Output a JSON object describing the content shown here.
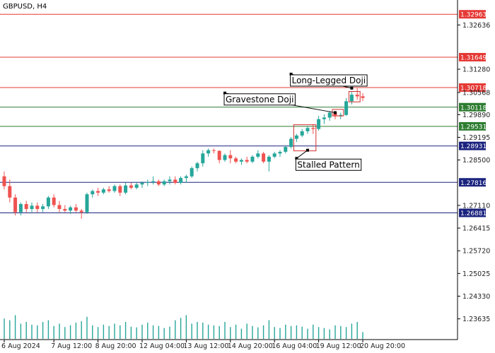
{
  "chart_data": {
    "type": "candlestick",
    "title": "GBPUSD, H4",
    "ylim": [
      1.23,
      1.334
    ],
    "colors": {
      "bull": "#26a69a",
      "bear": "#ef5350",
      "volume": "#26a69a",
      "resistance": "#e53935",
      "support_green": "#2e7d32",
      "support_blue": "#1a237e",
      "pattern_box": "#d32f2f"
    },
    "y_ticks": [
      "1.32636",
      "1.31280",
      "1.30568",
      "1.29890",
      "1.29195",
      "1.28500",
      "1.27110",
      "1.26415",
      "1.25720",
      "1.25025",
      "1.24330",
      "1.23635"
    ],
    "x_ticks": [
      {
        "label": "6 Aug 2024",
        "index": 0
      },
      {
        "label": "7 Aug 12:00",
        "index": 9
      },
      {
        "label": "8 Aug 20:00",
        "index": 17
      },
      {
        "label": "12 Aug 04:00",
        "index": 25
      },
      {
        "label": "13 Aug 12:00",
        "index": 33
      },
      {
        "label": "14 Aug 20:00",
        "index": 41
      },
      {
        "label": "16 Aug 04:00",
        "index": 49
      },
      {
        "label": "19 Aug 12:00",
        "index": 57
      },
      {
        "label": "20 Aug 20:00",
        "index": 65
      }
    ],
    "levels": [
      {
        "price": 1.32963,
        "label": "1.32963",
        "kind": "resistance"
      },
      {
        "price": 1.31649,
        "label": "1.31649",
        "kind": "resistance"
      },
      {
        "price": 1.30718,
        "label": "1.30718",
        "kind": "resistance"
      },
      {
        "price": 1.30118,
        "label": "1.30118",
        "kind": "support_green"
      },
      {
        "price": 1.29531,
        "label": "1.29531",
        "kind": "support_green"
      },
      {
        "price": 1.28931,
        "label": "1.28931",
        "kind": "support_blue"
      },
      {
        "price": 1.27816,
        "label": "1.27816",
        "kind": "support_blue"
      },
      {
        "price": 1.26881,
        "label": "1.26881",
        "kind": "support_blue"
      }
    ],
    "candles": [
      [
        1.28,
        1.2815,
        1.276,
        1.277
      ],
      [
        1.277,
        1.279,
        1.272,
        1.2735
      ],
      [
        1.2735,
        1.2745,
        1.268,
        1.269
      ],
      [
        1.269,
        1.272,
        1.268,
        1.2715
      ],
      [
        1.2715,
        1.2725,
        1.269,
        1.27
      ],
      [
        1.27,
        1.272,
        1.269,
        1.271
      ],
      [
        1.271,
        1.272,
        1.269,
        1.27
      ],
      [
        1.27,
        1.2715,
        1.269,
        1.2708
      ],
      [
        1.2708,
        1.274,
        1.27,
        1.2735
      ],
      [
        1.2735,
        1.2745,
        1.2705,
        1.2712
      ],
      [
        1.2712,
        1.2725,
        1.269,
        1.27
      ],
      [
        1.27,
        1.2712,
        1.269,
        1.2695
      ],
      [
        1.2695,
        1.271,
        1.2685,
        1.2705
      ],
      [
        1.2705,
        1.2715,
        1.269,
        1.2695
      ],
      [
        1.2695,
        1.27,
        1.267,
        1.269
      ],
      [
        1.269,
        1.275,
        1.2685,
        1.2745
      ],
      [
        1.2745,
        1.276,
        1.2735,
        1.2755
      ],
      [
        1.2755,
        1.2765,
        1.274,
        1.275
      ],
      [
        1.275,
        1.2765,
        1.2745,
        1.276
      ],
      [
        1.276,
        1.277,
        1.275,
        1.2755
      ],
      [
        1.2755,
        1.2775,
        1.275,
        1.277
      ],
      [
        1.277,
        1.2775,
        1.274,
        1.275
      ],
      [
        1.275,
        1.278,
        1.2745,
        1.2772
      ],
      [
        1.2772,
        1.278,
        1.276,
        1.2765
      ],
      [
        1.2765,
        1.278,
        1.276,
        1.2775
      ],
      [
        1.2775,
        1.2785,
        1.2765,
        1.278
      ],
      [
        1.278,
        1.279,
        1.277,
        1.2782
      ],
      [
        1.2782,
        1.28,
        1.2775,
        1.2785
      ],
      [
        1.2785,
        1.279,
        1.277,
        1.2775
      ],
      [
        1.2775,
        1.279,
        1.277,
        1.2785
      ],
      [
        1.2785,
        1.28,
        1.2775,
        1.279
      ],
      [
        1.279,
        1.28,
        1.2775,
        1.278
      ],
      [
        1.278,
        1.28,
        1.2775,
        1.2795
      ],
      [
        1.2795,
        1.2805,
        1.278,
        1.28
      ],
      [
        1.28,
        1.283,
        1.2795,
        1.2825
      ],
      [
        1.2825,
        1.2845,
        1.2815,
        1.284
      ],
      [
        1.284,
        1.288,
        1.283,
        1.287
      ],
      [
        1.287,
        1.2885,
        1.286,
        1.288
      ],
      [
        1.288,
        1.2885,
        1.287,
        1.2878
      ],
      [
        1.2878,
        1.288,
        1.284,
        1.285
      ],
      [
        1.285,
        1.287,
        1.2845,
        1.2865
      ],
      [
        1.2865,
        1.288,
        1.284,
        1.2855
      ],
      [
        1.2855,
        1.286,
        1.284,
        1.2845
      ],
      [
        1.2845,
        1.2855,
        1.2835,
        1.285
      ],
      [
        1.285,
        1.286,
        1.284,
        1.2845
      ],
      [
        1.2845,
        1.2865,
        1.284,
        1.286
      ],
      [
        1.286,
        1.288,
        1.2855,
        1.287
      ],
      [
        1.287,
        1.2875,
        1.284,
        1.2845
      ],
      [
        1.2845,
        1.2865,
        1.2815,
        1.286
      ],
      [
        1.286,
        1.2875,
        1.2855,
        1.287
      ],
      [
        1.287,
        1.288,
        1.286,
        1.2875
      ],
      [
        1.2875,
        1.2895,
        1.287,
        1.289
      ],
      [
        1.289,
        1.292,
        1.2885,
        1.2915
      ],
      [
        1.2915,
        1.293,
        1.2905,
        1.2925
      ],
      [
        1.2925,
        1.2945,
        1.292,
        1.2938
      ],
      [
        1.2938,
        1.2955,
        1.293,
        1.2948
      ],
      [
        1.2948,
        1.296,
        1.293,
        1.2945
      ],
      [
        1.2945,
        1.2985,
        1.294,
        1.2975
      ],
      [
        1.2975,
        1.299,
        1.296,
        1.298
      ],
      [
        1.298,
        1.3,
        1.297,
        1.2995
      ],
      [
        1.2995,
        1.3,
        1.2975,
        1.2985
      ],
      [
        1.2985,
        1.2995,
        1.2975,
        1.2988
      ],
      [
        1.2988,
        1.304,
        1.2985,
        1.303
      ],
      [
        1.303,
        1.306,
        1.302,
        1.305
      ],
      [
        1.305,
        1.307,
        1.3035,
        1.3045
      ],
      [
        1.3045,
        1.3055,
        1.303,
        1.304
      ]
    ],
    "volumes": [
      0.6,
      0.55,
      0.7,
      0.45,
      0.5,
      0.42,
      0.4,
      0.5,
      0.55,
      0.38,
      0.45,
      0.35,
      0.4,
      0.48,
      0.52,
      0.65,
      0.4,
      0.35,
      0.42,
      0.38,
      0.45,
      0.4,
      0.5,
      0.36,
      0.34,
      0.42,
      0.48,
      0.4,
      0.38,
      0.32,
      0.36,
      0.55,
      0.62,
      0.7,
      0.45,
      0.5,
      0.48,
      0.42,
      0.4,
      0.38,
      0.5,
      0.35,
      0.42,
      0.3,
      0.45,
      0.38,
      0.34,
      0.4,
      0.55,
      0.35,
      0.32,
      0.42,
      0.38,
      0.4,
      0.36,
      0.3,
      0.42,
      0.35,
      0.32,
      0.28,
      0.4,
      0.38,
      0.35,
      0.45,
      0.5,
      0.2
    ],
    "annotations": [
      {
        "text": "Long-Legged Doji",
        "label_price": 1.3113,
        "label_index": 52,
        "target_index": 63,
        "target_price": 1.307
      },
      {
        "text": "Gravestone Doji",
        "label_price": 1.3055,
        "label_index": 40,
        "target_index": 60,
        "target_price": 1.2995
      },
      {
        "text": "Stalled Pattern",
        "label_price": 1.2855,
        "label_index": 53,
        "target_index": 55,
        "target_price": 1.288
      }
    ],
    "pattern_boxes": [
      {
        "from": 53,
        "to": 56,
        "low": 1.2878,
        "high": 1.2958
      },
      {
        "from": 60,
        "to": 61,
        "low": 1.2985,
        "high": 1.3005
      },
      {
        "from": 63,
        "to": 64,
        "low": 1.3028,
        "high": 1.306
      }
    ]
  }
}
